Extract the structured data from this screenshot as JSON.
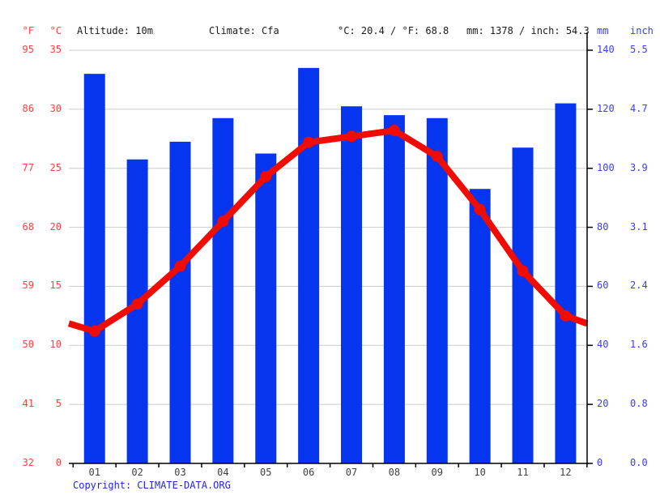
{
  "header": {
    "f_title": "°F",
    "c_title": "°C",
    "altitude": "Altitude: 10m",
    "climate": "Climate: Cfa",
    "temp_summary": "°C: 20.4 / °F: 68.8",
    "precip_summary": "mm: 1378 / inch: 54.3",
    "mm_title": "mm",
    "inch_title": "inch"
  },
  "footer": {
    "copyright_prefix": "Copyright:",
    "copyright_link": "CLIMATE-DATA.ORG"
  },
  "colors": {
    "bar": "#0635f0",
    "line": "#f00c00",
    "temp_text": "#ff4040",
    "precip_text": "#3b3bff",
    "grid": "#cccccc",
    "axis": "#000000",
    "month_text": "#404040",
    "link": "#2424e0"
  },
  "chart_data": {
    "type": "climograph (bar + line)",
    "title": "",
    "categories": [
      "01",
      "02",
      "03",
      "04",
      "05",
      "06",
      "07",
      "08",
      "09",
      "10",
      "11",
      "12"
    ],
    "series": [
      {
        "name": "Precipitation (mm)",
        "type": "bar",
        "values": [
          132,
          103,
          109,
          117,
          105,
          134,
          121,
          118,
          117,
          93,
          107,
          122
        ]
      },
      {
        "name": "Temperature (°C)",
        "type": "line",
        "values": [
          11.2,
          13.5,
          16.7,
          20.5,
          24.3,
          27.2,
          27.7,
          28.2,
          26.0,
          21.5,
          16.3,
          12.5
        ]
      }
    ],
    "left_axis": {
      "f_ticks": [
        95,
        86,
        77,
        68,
        59,
        50,
        41,
        32
      ],
      "c_ticks": [
        35,
        30,
        25,
        20,
        15,
        10,
        5,
        0
      ],
      "c_range": [
        0,
        35
      ]
    },
    "right_axis": {
      "mm_ticks": [
        140,
        120,
        100,
        80,
        60,
        40,
        20,
        0
      ],
      "inch_ticks": [
        "5.5",
        "4.7",
        "3.9",
        "3.1",
        "2.4",
        "1.6",
        "0.8",
        "0.0"
      ],
      "mm_range": [
        0,
        140
      ]
    },
    "legend": "none",
    "grid": "horizontal gridlines every 5°C / 20mm"
  }
}
